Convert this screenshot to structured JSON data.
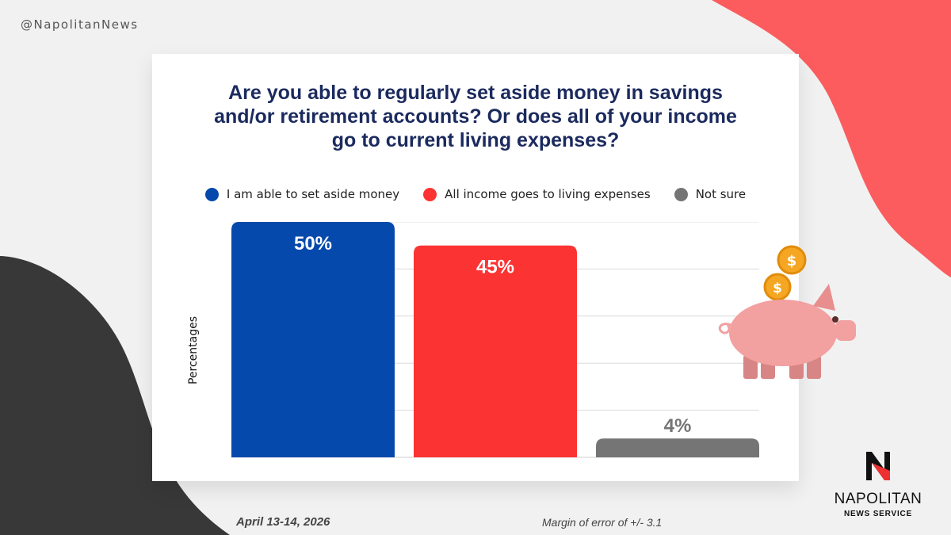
{
  "handle": "@NapolitanNews",
  "colors": {
    "blue": "#0649ad",
    "red": "#fb3333",
    "gray": "#757575",
    "title": "#1b2a5e",
    "coral": "#fc5c5d",
    "dark": "#383838",
    "pig": "#f2a0a0"
  },
  "chart_data": {
    "type": "bar",
    "title": "Are you able to regularly set aside money in savings and/or retirement accounts? Or does all of your income go to current living expenses?",
    "ylabel": "Percentages",
    "xlabel": "",
    "series": [
      {
        "name": "I am able to set aside money",
        "value": 50,
        "label": "50%",
        "color": "#0649ad"
      },
      {
        "name": "All income goes to living expenses",
        "value": 45,
        "label": "45%",
        "color": "#fb3333"
      },
      {
        "name": "Not sure",
        "value": 4,
        "label": "4%",
        "color": "#757575"
      }
    ],
    "ylim": [
      0,
      50
    ],
    "grid": true,
    "legend_position": "top"
  },
  "footer": {
    "date": "April 13-14, 2026",
    "margin": "Margin of error of +/- 3.1"
  },
  "brand": {
    "letter": "N",
    "name": "NAPOLITAN",
    "sub": "NEWS SERVICE"
  },
  "icons": {
    "pig": "piggy-bank-icon",
    "coin": "dollar-coin-icon"
  }
}
